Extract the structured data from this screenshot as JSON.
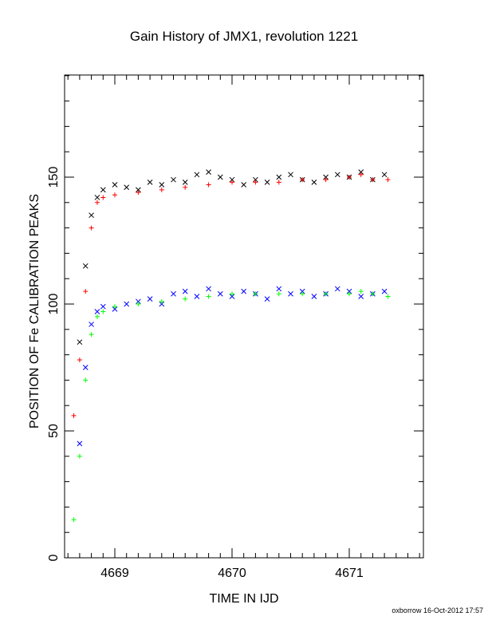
{
  "chart_data": {
    "type": "scatter",
    "title": "Gain History of JMX1, revolution 1221",
    "xlabel": "TIME IN IJD",
    "ylabel": "POSITION OF Fe CALIBRATION PEAKS",
    "xlim": [
      4668.6,
      4671.6
    ],
    "ylim": [
      0,
      190
    ],
    "x_ticks": [
      4669,
      4670,
      4671
    ],
    "y_ticks": [
      0,
      50,
      100,
      150
    ],
    "grid": false,
    "legend": "none",
    "series": [
      {
        "marker": "x",
        "color": "#000000",
        "x": [
          4668.7,
          4668.75,
          4668.8,
          4668.85,
          4668.9,
          4669.0,
          4669.1,
          4669.2,
          4669.3,
          4669.4,
          4669.5,
          4669.6,
          4669.7,
          4669.8,
          4669.9,
          4670.0,
          4670.1,
          4670.2,
          4670.3,
          4670.4,
          4670.5,
          4670.6,
          4670.7,
          4670.8,
          4670.9,
          4671.0,
          4671.1,
          4671.2,
          4671.3
        ],
        "y": [
          85,
          115,
          135,
          142,
          145,
          147,
          146,
          145,
          148,
          147,
          149,
          148,
          151,
          152,
          150,
          149,
          147,
          149,
          148,
          150,
          151,
          149,
          148,
          150,
          151,
          150,
          152,
          149,
          151
        ]
      },
      {
        "marker": "+",
        "color": "#ff0000",
        "x": [
          4668.65,
          4668.7,
          4668.75,
          4668.8,
          4668.85,
          4668.9,
          4669.0,
          4669.2,
          4669.4,
          4669.6,
          4669.8,
          4670.0,
          4670.2,
          4670.4,
          4670.6,
          4670.8,
          4671.0,
          4671.1,
          4671.2,
          4671.33
        ],
        "y": [
          56,
          78,
          105,
          130,
          140,
          142,
          143,
          144,
          145,
          146,
          147,
          148,
          148,
          148,
          149,
          149,
          150,
          151,
          149,
          149
        ]
      },
      {
        "marker": "x",
        "color": "#0000ff",
        "x": [
          4668.7,
          4668.75,
          4668.8,
          4668.85,
          4668.9,
          4669.0,
          4669.1,
          4669.2,
          4669.3,
          4669.4,
          4669.5,
          4669.6,
          4669.7,
          4669.8,
          4669.9,
          4670.0,
          4670.1,
          4670.2,
          4670.3,
          4670.4,
          4670.5,
          4670.6,
          4670.7,
          4670.8,
          4670.9,
          4671.0,
          4671.1,
          4671.2,
          4671.3
        ],
        "y": [
          45,
          75,
          92,
          97,
          99,
          98,
          100,
          101,
          102,
          100,
          104,
          105,
          103,
          106,
          104,
          103,
          105,
          104,
          102,
          106,
          104,
          105,
          103,
          104,
          106,
          105,
          103,
          104,
          105
        ]
      },
      {
        "marker": "+",
        "color": "#00ff00",
        "x": [
          4668.65,
          4668.7,
          4668.75,
          4668.8,
          4668.85,
          4668.9,
          4669.0,
          4669.2,
          4669.4,
          4669.6,
          4669.8,
          4670.0,
          4670.2,
          4670.4,
          4670.6,
          4670.8,
          4671.0,
          4671.1,
          4671.2,
          4671.33
        ],
        "y": [
          15,
          40,
          70,
          88,
          95,
          97,
          99,
          100,
          101,
          102,
          103,
          104,
          104,
          104,
          104,
          104,
          104,
          105,
          104,
          103
        ]
      }
    ]
  },
  "footer": {
    "credit": "oxborrow 16-Oct-2012 17:57"
  }
}
